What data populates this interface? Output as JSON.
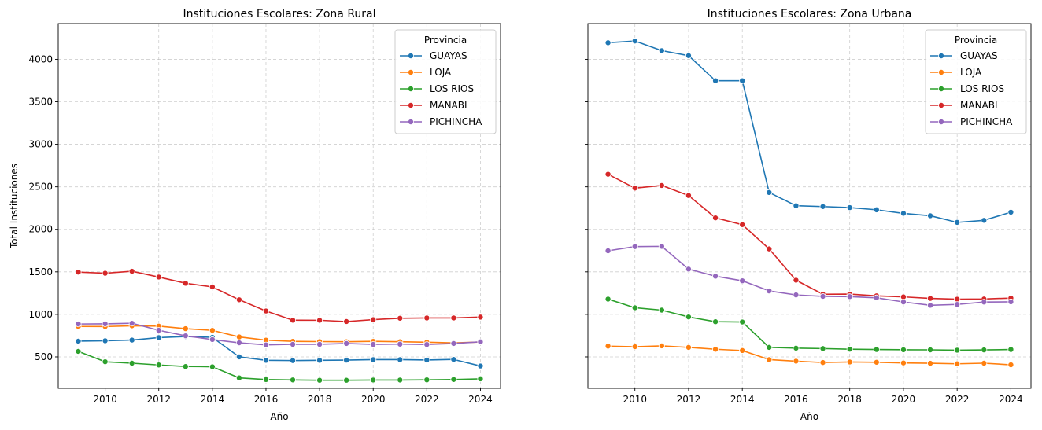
{
  "chart_data": [
    {
      "type": "line",
      "title": "Instituciones Escolares: Zona Rural",
      "xlabel": "Año",
      "ylabel": "Total Instituciones",
      "xlim": [
        2008.25,
        2024.75
      ],
      "ylim": [
        130,
        4420
      ],
      "xticks": [
        2010,
        2012,
        2014,
        2016,
        2018,
        2020,
        2022,
        2024
      ],
      "yticks": [
        500,
        1000,
        1500,
        2000,
        2500,
        3000,
        3500,
        4000
      ],
      "x": [
        2009,
        2010,
        2011,
        2012,
        2013,
        2014,
        2015,
        2016,
        2017,
        2018,
        2019,
        2020,
        2021,
        2022,
        2023,
        2024
      ],
      "grid": true,
      "legend_title": "Provincia",
      "legend_position": "top-right",
      "series": [
        {
          "name": "GUAYAS",
          "color": "#1f77b4",
          "values": [
            685,
            690,
            698,
            727,
            740,
            730,
            500,
            460,
            457,
            460,
            462,
            468,
            468,
            463,
            470,
            393
          ]
        },
        {
          "name": "LOJA",
          "color": "#ff7f0e",
          "values": [
            858,
            857,
            866,
            862,
            832,
            812,
            735,
            697,
            683,
            680,
            678,
            683,
            678,
            673,
            665,
            675
          ]
        },
        {
          "name": "LOS RIOS",
          "color": "#2ca02c",
          "values": [
            565,
            443,
            426,
            405,
            387,
            384,
            253,
            233,
            229,
            225,
            225,
            228,
            228,
            230,
            234,
            242
          ]
        },
        {
          "name": "MANABI",
          "color": "#d62728",
          "values": [
            1497,
            1484,
            1507,
            1439,
            1366,
            1323,
            1172,
            1040,
            932,
            931,
            916,
            938,
            955,
            958,
            958,
            968
          ]
        },
        {
          "name": "PICHINCHA",
          "color": "#9467bd",
          "values": [
            887,
            889,
            896,
            813,
            748,
            704,
            666,
            641,
            648,
            648,
            658,
            647,
            650,
            646,
            658,
            677
          ]
        }
      ]
    },
    {
      "type": "line",
      "title": "Instituciones Escolares: Zona Urbana",
      "xlabel": "Año",
      "ylabel": "",
      "xlim": [
        2008.25,
        2024.75
      ],
      "ylim": [
        130,
        4420
      ],
      "xticks": [
        2010,
        2012,
        2014,
        2016,
        2018,
        2020,
        2022,
        2024
      ],
      "yticks": [
        500,
        1000,
        1500,
        2000,
        2500,
        3000,
        3500,
        4000
      ],
      "x": [
        2009,
        2010,
        2011,
        2012,
        2013,
        2014,
        2015,
        2016,
        2017,
        2018,
        2019,
        2020,
        2021,
        2022,
        2023,
        2024
      ],
      "grid": true,
      "legend_title": "Provincia",
      "legend_position": "top-right",
      "series": [
        {
          "name": "GUAYAS",
          "color": "#1f77b4",
          "values": [
            4195,
            4215,
            4102,
            4043,
            3748,
            3748,
            2434,
            2278,
            2268,
            2256,
            2230,
            2188,
            2160,
            2082,
            2106,
            2202
          ]
        },
        {
          "name": "LOJA",
          "color": "#ff7f0e",
          "values": [
            627,
            620,
            630,
            612,
            590,
            575,
            468,
            450,
            434,
            440,
            437,
            429,
            425,
            419,
            426,
            407
          ]
        },
        {
          "name": "LOS RIOS",
          "color": "#2ca02c",
          "values": [
            1180,
            1078,
            1050,
            970,
            914,
            911,
            612,
            603,
            598,
            591,
            587,
            584,
            583,
            579,
            582,
            587
          ]
        },
        {
          "name": "MANABI",
          "color": "#d62728",
          "values": [
            2648,
            2485,
            2516,
            2398,
            2135,
            2055,
            1770,
            1402,
            1237,
            1239,
            1218,
            1206,
            1188,
            1179,
            1181,
            1192
          ]
        },
        {
          "name": "PICHINCHA",
          "color": "#9467bd",
          "values": [
            1748,
            1797,
            1800,
            1532,
            1449,
            1395,
            1276,
            1229,
            1212,
            1209,
            1195,
            1146,
            1107,
            1117,
            1145,
            1148
          ]
        }
      ]
    }
  ]
}
